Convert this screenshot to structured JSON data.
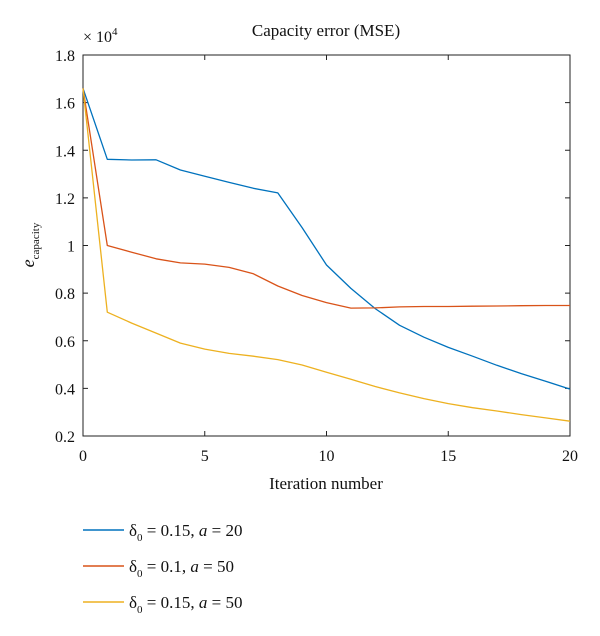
{
  "chart_data": {
    "type": "line",
    "title": "Capacity error (MSE)",
    "xlabel": "Iteration number",
    "ylabel": "e",
    "ylabel_subscript": "capacity",
    "y_multiplier_label": "× 10",
    "y_multiplier_exponent": "4",
    "xlim": [
      0,
      20
    ],
    "ylim": [
      0.2,
      1.8
    ],
    "x_ticks": [
      0,
      5,
      10,
      15,
      20
    ],
    "x_tick_labels": [
      "0",
      "5",
      "10",
      "15",
      "20"
    ],
    "y_ticks": [
      0.2,
      0.4,
      0.6,
      0.8,
      1.0,
      1.2,
      1.4,
      1.6,
      1.8
    ],
    "y_tick_labels": [
      "0.2",
      "0.4",
      "0.6",
      "0.8",
      "1",
      "1.2",
      "1.4",
      "1.6",
      "1.8"
    ],
    "grid": false,
    "legend_position": "below",
    "x": [
      0,
      1,
      2,
      3,
      4,
      5,
      6,
      7,
      8,
      9,
      10,
      11,
      12,
      13,
      14,
      15,
      16,
      17,
      18,
      19,
      20
    ],
    "series": [
      {
        "name": "δ0 = 0.15, a = 20",
        "label_parts": {
          "symbol": "δ",
          "sub": "0",
          "mid": " = 0.15, ",
          "italic": "a",
          "end": " = 20"
        },
        "color": "#0072BD",
        "values": [
          1.66,
          1.362,
          1.359,
          1.36,
          1.317,
          1.291,
          1.265,
          1.24,
          1.221,
          1.075,
          0.918,
          0.82,
          0.735,
          0.665,
          0.615,
          0.572,
          0.535,
          0.497,
          0.462,
          0.43,
          0.397
        ]
      },
      {
        "name": "δ0 = 0.1, a = 50",
        "label_parts": {
          "symbol": "δ",
          "sub": "0",
          "mid": " = 0.1, ",
          "italic": "a",
          "end": " = 50"
        },
        "color": "#D95319",
        "values": [
          1.66,
          1.0,
          0.972,
          0.944,
          0.927,
          0.922,
          0.908,
          0.881,
          0.83,
          0.79,
          0.76,
          0.737,
          0.738,
          0.742,
          0.744,
          0.744,
          0.745,
          0.746,
          0.747,
          0.748,
          0.748
        ]
      },
      {
        "name": "δ0 = 0.15, a = 50",
        "label_parts": {
          "symbol": "δ",
          "sub": "0",
          "mid": " = 0.15, ",
          "italic": "a",
          "end": " = 50"
        },
        "color": "#EDB120",
        "values": [
          1.66,
          0.72,
          0.674,
          0.632,
          0.59,
          0.565,
          0.547,
          0.535,
          0.521,
          0.498,
          0.468,
          0.438,
          0.408,
          0.381,
          0.357,
          0.336,
          0.319,
          0.305,
          0.29,
          0.276,
          0.262
        ]
      }
    ]
  }
}
